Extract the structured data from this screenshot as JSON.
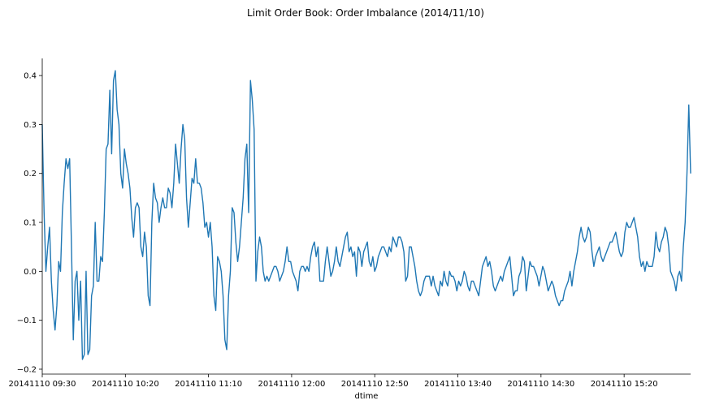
{
  "chart_data": {
    "type": "line",
    "title": "Limit Order Book: Order Imbalance (2014/11/10)",
    "xlabel": "dtime",
    "ylabel": "",
    "xticks": [
      "20141110 09:30",
      "20141110 10:20",
      "20141110 11:10",
      "20141110 12:00",
      "20141110 12:50",
      "20141110 13:40",
      "20141110 14:30",
      "20141110 15:20"
    ],
    "xtick_positions": [
      0,
      50,
      100,
      150,
      200,
      250,
      300,
      350
    ],
    "xlim": [
      0,
      390
    ],
    "yticks": [
      -0.2,
      -0.1,
      0.0,
      0.1,
      0.2,
      0.3,
      0.4
    ],
    "ytick_labels": [
      "−0.2",
      "−0.1",
      "0.0",
      "0.1",
      "0.2",
      "0.3",
      "0.4"
    ],
    "ylim": [
      -0.21,
      0.435
    ],
    "grid": false,
    "color": "#1f77b4",
    "series": [
      {
        "values": [
          0.3,
          0.12,
          0.0,
          0.05,
          0.09,
          -0.02,
          -0.08,
          -0.12,
          -0.07,
          0.02,
          0.0,
          0.12,
          0.18,
          0.23,
          0.21,
          0.23,
          0.05,
          -0.14,
          -0.02,
          0.0,
          -0.1,
          -0.02,
          -0.18,
          -0.17,
          0.0,
          -0.17,
          -0.16,
          -0.05,
          -0.03,
          0.1,
          -0.02,
          -0.02,
          0.03,
          0.02,
          0.12,
          0.25,
          0.26,
          0.37,
          0.24,
          0.39,
          0.41,
          0.33,
          0.3,
          0.2,
          0.17,
          0.25,
          0.22,
          0.2,
          0.17,
          0.11,
          0.07,
          0.13,
          0.14,
          0.13,
          0.05,
          0.03,
          0.08,
          0.05,
          -0.05,
          -0.07,
          0.1,
          0.18,
          0.15,
          0.14,
          0.1,
          0.13,
          0.15,
          0.13,
          0.13,
          0.17,
          0.16,
          0.13,
          0.18,
          0.26,
          0.22,
          0.18,
          0.25,
          0.3,
          0.27,
          0.15,
          0.09,
          0.14,
          0.19,
          0.18,
          0.23,
          0.18,
          0.18,
          0.17,
          0.14,
          0.09,
          0.1,
          0.07,
          0.1,
          0.05,
          -0.05,
          -0.08,
          0.03,
          0.02,
          0.0,
          -0.05,
          -0.14,
          -0.16,
          -0.05,
          0.0,
          0.13,
          0.12,
          0.06,
          0.02,
          0.05,
          0.1,
          0.15,
          0.23,
          0.26,
          0.12,
          0.39,
          0.35,
          0.29,
          -0.02,
          0.04,
          0.07,
          0.05,
          0.0,
          -0.02,
          -0.01,
          -0.02,
          -0.01,
          0.0,
          0.01,
          0.01,
          0.0,
          -0.02,
          -0.01,
          0.0,
          0.02,
          0.05,
          0.02,
          0.02,
          0.0,
          -0.01,
          -0.02,
          -0.04,
          0.0,
          0.01,
          0.01,
          0.0,
          0.01,
          0.0,
          0.03,
          0.05,
          0.06,
          0.03,
          0.05,
          -0.02,
          -0.02,
          -0.02,
          0.02,
          0.05,
          0.02,
          -0.01,
          0.0,
          0.02,
          0.05,
          0.02,
          0.01,
          0.03,
          0.05,
          0.07,
          0.08,
          0.04,
          0.05,
          0.03,
          0.04,
          -0.01,
          0.05,
          0.04,
          0.01,
          0.04,
          0.05,
          0.06,
          0.02,
          0.01,
          0.03,
          0.0,
          0.01,
          0.03,
          0.04,
          0.05,
          0.05,
          0.04,
          0.03,
          0.05,
          0.04,
          0.07,
          0.06,
          0.05,
          0.07,
          0.07,
          0.06,
          0.04,
          -0.02,
          -0.01,
          0.05,
          0.05,
          0.03,
          0.01,
          -0.02,
          -0.04,
          -0.05,
          -0.04,
          -0.02,
          -0.01,
          -0.01,
          -0.01,
          -0.03,
          -0.01,
          -0.03,
          -0.04,
          -0.05,
          -0.02,
          -0.03,
          0.0,
          -0.02,
          -0.03,
          0.0,
          -0.01,
          -0.01,
          -0.02,
          -0.04,
          -0.02,
          -0.03,
          -0.02,
          0.0,
          -0.01,
          -0.03,
          -0.04,
          -0.02,
          -0.02,
          -0.03,
          -0.04,
          -0.05,
          -0.02,
          0.01,
          0.02,
          0.03,
          0.01,
          0.02,
          0.0,
          -0.03,
          -0.04,
          -0.03,
          -0.02,
          -0.01,
          -0.02,
          0.0,
          0.01,
          0.02,
          0.03,
          -0.01,
          -0.05,
          -0.04,
          -0.04,
          -0.01,
          0.0,
          0.03,
          0.02,
          -0.04,
          -0.01,
          0.02,
          0.01,
          0.01,
          0.0,
          -0.01,
          -0.03,
          -0.01,
          0.01,
          0.0,
          -0.02,
          -0.04,
          -0.03,
          -0.02,
          -0.03,
          -0.05,
          -0.06,
          -0.07,
          -0.06,
          -0.06,
          -0.04,
          -0.03,
          -0.02,
          0.0,
          -0.03,
          0.0,
          0.02,
          0.04,
          0.07,
          0.09,
          0.07,
          0.06,
          0.07,
          0.09,
          0.08,
          0.04,
          0.01,
          0.03,
          0.04,
          0.05,
          0.03,
          0.02,
          0.03,
          0.04,
          0.05,
          0.06,
          0.06,
          0.07,
          0.08,
          0.06,
          0.04,
          0.03,
          0.04,
          0.08,
          0.1,
          0.09,
          0.09,
          0.1,
          0.11,
          0.09,
          0.07,
          0.03,
          0.01,
          0.02,
          0.0,
          0.02,
          0.01,
          0.01,
          0.01,
          0.03,
          0.08,
          0.05,
          0.04,
          0.06,
          0.07,
          0.09,
          0.08,
          0.05,
          0.0,
          -0.01,
          -0.02,
          -0.04,
          -0.01,
          0.0,
          -0.02,
          0.05,
          0.1,
          0.2,
          0.34,
          0.2
        ]
      }
    ]
  }
}
